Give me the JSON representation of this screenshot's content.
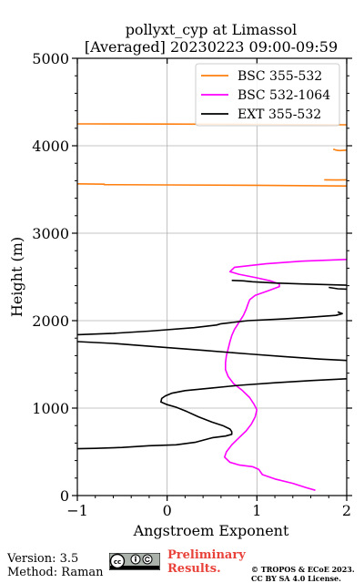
{
  "chart_data": {
    "type": "line",
    "title": "pollyxt_cyp at Limassol",
    "subtitle": "[Averaged] 20230223 09:00-09:59",
    "xlabel": "Angstroem Exponent",
    "ylabel": "Height (m)",
    "xlim": [
      -1,
      2
    ],
    "ylim": [
      0,
      5000
    ],
    "xticks": [
      "−1",
      "0",
      "1",
      "2"
    ],
    "yticks": [
      "0",
      "1000",
      "2000",
      "3000",
      "4000",
      "5000"
    ],
    "grid": true,
    "legend_position": "top-right",
    "series": [
      {
        "name": "BSC 355-532",
        "color": "#ff7f0e",
        "segments": [
          [
            [
              -1,
              4250
            ],
            [
              0,
              4248
            ],
            [
              1,
              4245
            ],
            [
              2,
              4240
            ]
          ],
          [
            [
              1.85,
              3960
            ],
            [
              1.88,
              3950
            ],
            [
              1.92,
              3945
            ],
            [
              2,
              3950
            ]
          ],
          [
            [
              1.75,
              3610
            ],
            [
              1.9,
              3608
            ],
            [
              2,
              3610
            ]
          ],
          [
            [
              -1,
              3565
            ],
            [
              -0.7,
              3560
            ],
            [
              -0.7,
              3555
            ],
            [
              0,
              3552
            ],
            [
              1,
              3548
            ],
            [
              2,
              3540
            ]
          ]
        ]
      },
      {
        "name": "BSC 532-1064",
        "color": "#ff00ff",
        "segments": [
          [
            [
              2,
              2700
            ],
            [
              1.5,
              2680
            ],
            [
              1.1,
              2650
            ],
            [
              0.75,
              2610
            ],
            [
              0.72,
              2580
            ],
            [
              0.7,
              2560
            ],
            [
              0.8,
              2530
            ],
            [
              1,
              2490
            ],
            [
              1.15,
              2455
            ],
            [
              1.25,
              2420
            ],
            [
              1.25,
              2390
            ],
            [
              1.12,
              2340
            ],
            [
              0.98,
              2290
            ],
            [
              0.92,
              2240
            ],
            [
              0.9,
              2190
            ],
            [
              0.88,
              2130
            ],
            [
              0.85,
              2060
            ],
            [
              0.8,
              1980
            ],
            [
              0.75,
              1900
            ],
            [
              0.72,
              1830
            ],
            [
              0.7,
              1760
            ],
            [
              0.68,
              1680
            ],
            [
              0.66,
              1600
            ],
            [
              0.65,
              1520
            ],
            [
              0.65,
              1440
            ],
            [
              0.68,
              1360
            ],
            [
              0.74,
              1280
            ],
            [
              0.84,
              1200
            ],
            [
              0.92,
              1120
            ],
            [
              0.97,
              1040
            ],
            [
              1,
              980
            ],
            [
              0.98,
              900
            ],
            [
              0.94,
              820
            ],
            [
              0.88,
              740
            ],
            [
              0.8,
              660
            ],
            [
              0.72,
              580
            ],
            [
              0.66,
              500
            ],
            [
              0.64,
              440
            ],
            [
              0.7,
              380
            ],
            [
              0.8,
              350
            ],
            [
              0.95,
              330
            ],
            [
              1.02,
              300
            ],
            [
              1.06,
              240
            ],
            [
              1.2,
              190
            ],
            [
              1.4,
              140
            ],
            [
              1.55,
              90
            ],
            [
              1.65,
              60
            ]
          ]
        ]
      },
      {
        "name": "EXT 355-532",
        "color": "#000000",
        "segments": [
          [
            [
              0.72,
              2460
            ],
            [
              0.85,
              2455
            ],
            [
              0.95,
              2445
            ],
            [
              1.2,
              2430
            ],
            [
              1.5,
              2420
            ],
            [
              2,
              2405
            ]
          ],
          [
            [
              1.8,
              2380
            ],
            [
              1.9,
              2365
            ],
            [
              2,
              2360
            ]
          ],
          [
            [
              1.9,
              2100
            ],
            [
              1.95,
              2080
            ],
            [
              1.88,
              2060
            ],
            [
              1.6,
              2040
            ],
            [
              1.3,
              2020
            ],
            [
              0.9,
              2000
            ],
            [
              0.6,
              1965
            ],
            [
              0.55,
              1950
            ],
            [
              0.3,
              1920
            ],
            [
              -0.2,
              1880
            ],
            [
              -0.6,
              1855
            ],
            [
              -1,
              1840
            ]
          ],
          [
            [
              -1,
              1760
            ],
            [
              -0.6,
              1740
            ],
            [
              -0.1,
              1700
            ],
            [
              0.4,
              1660
            ],
            [
              0.9,
              1620
            ],
            [
              1.3,
              1590
            ],
            [
              1.7,
              1560
            ],
            [
              2,
              1545
            ]
          ],
          [
            [
              2,
              1335
            ],
            [
              1.6,
              1315
            ],
            [
              1.2,
              1290
            ],
            [
              0.8,
              1260
            ],
            [
              0.5,
              1230
            ],
            [
              0.2,
              1200
            ],
            [
              0.05,
              1170
            ],
            [
              -0.02,
              1140
            ],
            [
              -0.06,
              1110
            ],
            [
              -0.07,
              1070
            ],
            [
              0,
              1040
            ],
            [
              0.1,
              1010
            ],
            [
              0.22,
              960
            ],
            [
              0.35,
              900
            ],
            [
              0.5,
              840
            ],
            [
              0.62,
              800
            ],
            [
              0.7,
              760
            ],
            [
              0.72,
              730
            ],
            [
              0.72,
              700
            ],
            [
              0.65,
              680
            ],
            [
              0.5,
              660
            ],
            [
              0.32,
              610
            ],
            [
              0.1,
              580
            ],
            [
              -0.2,
              570
            ],
            [
              -0.5,
              550
            ],
            [
              -0.8,
              540
            ],
            [
              -1,
              535
            ]
          ]
        ]
      }
    ]
  },
  "footer": {
    "version": "Version: 3.5",
    "method": "Method: Raman",
    "preliminary_line1": "Preliminary",
    "preliminary_line2": "Results.",
    "copyright_line1": "© TROPOS & ECoE 2023.",
    "copyright_line2": "CC BY SA 4.0 License."
  }
}
